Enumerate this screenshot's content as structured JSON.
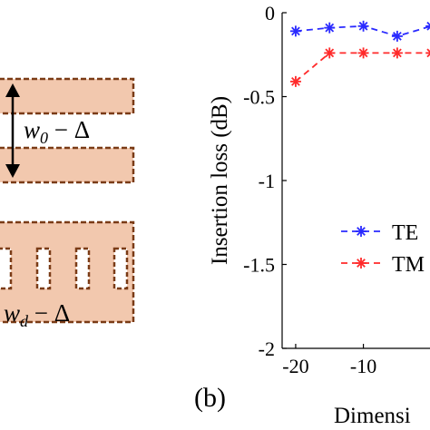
{
  "schematic": {
    "top_label": "w₀ − Δ",
    "bottom_label": "w_d − Δ",
    "copper_color": "#f2c8ae",
    "border_color": "#7a3b16"
  },
  "panel_label": "(b)",
  "chart_data": {
    "type": "line",
    "xlabel": "Dimensi",
    "ylabel": "Insertion loss (dB)",
    "xlim": [
      -22,
      6
    ],
    "ylim": [
      -2,
      0
    ],
    "xticks": [
      -20,
      -10
    ],
    "xtick_labels": [
      "-20",
      "-10"
    ],
    "yticks": [
      0,
      -0.5,
      -1,
      -1.5,
      -2
    ],
    "ytick_labels": [
      "0",
      "-0.5",
      "-1",
      "-1.5",
      "-2"
    ],
    "grid": false,
    "legend_position": "right",
    "series": [
      {
        "name": "TE",
        "color": "#2a2aff",
        "x": [
          -20,
          -15,
          -10,
          -5,
          0
        ],
        "y": [
          -0.11,
          -0.09,
          -0.08,
          -0.14,
          -0.08
        ]
      },
      {
        "name": "TM",
        "color": "#ff2a2a",
        "x": [
          -20,
          -15,
          -10,
          -5,
          0
        ],
        "y": [
          -0.41,
          -0.24,
          -0.24,
          -0.24,
          -0.24
        ]
      }
    ]
  }
}
